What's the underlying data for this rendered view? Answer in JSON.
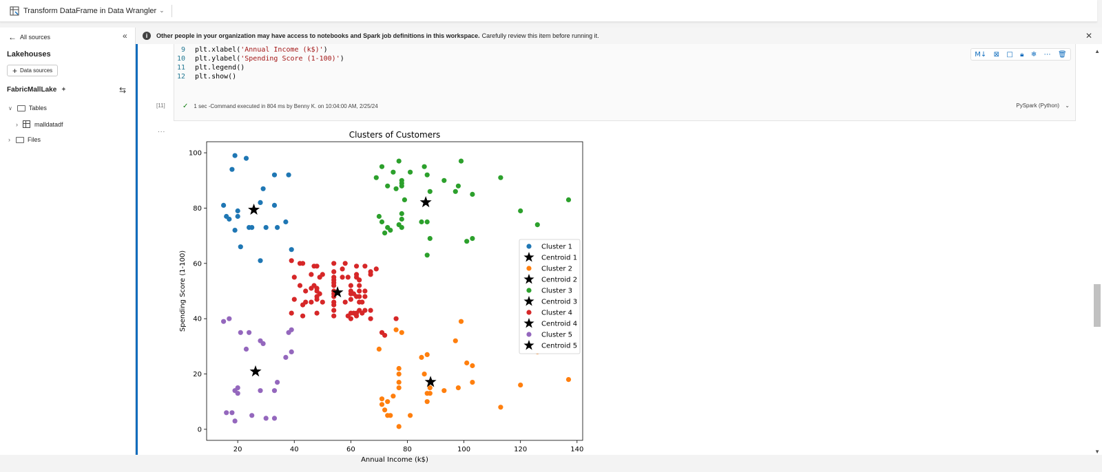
{
  "topbar": {
    "title": "Transform DataFrame in Data Wrangler"
  },
  "sidebar": {
    "back_label": "All sources",
    "section_title": "Lakehouses",
    "add_button_label": "Data sources",
    "lakehouse_name": "FabricMallLake",
    "tree": {
      "tables_label": "Tables",
      "table_item": "malldatadf",
      "files_label": "Files"
    }
  },
  "banner": {
    "bold_text": "Other people in your organization may have access to notebooks and Spark job definitions in this workspace.",
    "text": "Carefully review this item before running it."
  },
  "cell": {
    "lines": [
      {
        "num": "9",
        "pre": "plt.xlabel(",
        "str": "'Annual Income (k$)'",
        "post": ")"
      },
      {
        "num": "10",
        "pre": "plt.ylabel(",
        "str": "'Spending Score (1-100)'",
        "post": ")"
      },
      {
        "num": "11",
        "pre": "plt.legend()",
        "str": "",
        "post": ""
      },
      {
        "num": "12",
        "pre": "plt.show()",
        "str": "",
        "post": ""
      }
    ],
    "exec_count": "[11]",
    "exec_status": "1 sec -Command executed in 804 ms by Benny K. on 10:04:00 AM, 2/25/24",
    "language": "PySpark (Python)",
    "output_ellipsis": "..."
  },
  "colors": {
    "c1": "#1f77b4",
    "c2": "#ff7f0e",
    "c3": "#2ca02c",
    "c4": "#d62728",
    "c5": "#9467bd",
    "accent": "#0f6cbd"
  },
  "chart_data": {
    "type": "scatter",
    "title": "Clusters of Customers",
    "xlabel": "Annual Income (k$)",
    "ylabel": "Spending Score (1-100)",
    "xlim": [
      9,
      142
    ],
    "ylim": [
      -4,
      104
    ],
    "xticks": [
      20,
      40,
      60,
      80,
      100,
      120,
      140
    ],
    "yticks": [
      0,
      20,
      40,
      60,
      80,
      100
    ],
    "legend_position": "right",
    "series": [
      {
        "name": "Cluster 1",
        "color": "#1f77b4",
        "points": [
          [
            15,
            81
          ],
          [
            16,
            77
          ],
          [
            17,
            76
          ],
          [
            18,
            94
          ],
          [
            19,
            99
          ],
          [
            19,
            72
          ],
          [
            20,
            79
          ],
          [
            20,
            77
          ],
          [
            21,
            66
          ],
          [
            23,
            98
          ],
          [
            24,
            73
          ],
          [
            25,
            73
          ],
          [
            28,
            82
          ],
          [
            28,
            61
          ],
          [
            29,
            87
          ],
          [
            30,
            73
          ],
          [
            33,
            81
          ],
          [
            33,
            92
          ],
          [
            34,
            73
          ],
          [
            37,
            75
          ],
          [
            38,
            92
          ],
          [
            39,
            65
          ]
        ]
      },
      {
        "name": "Centroid 1",
        "marker": "star",
        "points": [
          [
            25.7,
            79.4
          ]
        ]
      },
      {
        "name": "Cluster 2",
        "color": "#ff7f0e",
        "points": [
          [
            70,
            29
          ],
          [
            71,
            11
          ],
          [
            71,
            9
          ],
          [
            72,
            7
          ],
          [
            73,
            5
          ],
          [
            73,
            10
          ],
          [
            74,
            5
          ],
          [
            75,
            12
          ],
          [
            76,
            36
          ],
          [
            77,
            1
          ],
          [
            77,
            22
          ],
          [
            77,
            20
          ],
          [
            77,
            17
          ],
          [
            77,
            15
          ],
          [
            78,
            35
          ],
          [
            81,
            5
          ],
          [
            85,
            26
          ],
          [
            86,
            20
          ],
          [
            87,
            27
          ],
          [
            87,
            13
          ],
          [
            87,
            10
          ],
          [
            88,
            13
          ],
          [
            88,
            15
          ],
          [
            93,
            14
          ],
          [
            97,
            32
          ],
          [
            98,
            15
          ],
          [
            99,
            39
          ],
          [
            101,
            24
          ],
          [
            103,
            17
          ],
          [
            103,
            23
          ],
          [
            113,
            8
          ],
          [
            120,
            16
          ],
          [
            126,
            28
          ],
          [
            137,
            18
          ]
        ]
      },
      {
        "name": "Centroid 2",
        "marker": "star",
        "points": [
          [
            88.2,
            17.1
          ]
        ]
      },
      {
        "name": "Cluster 3",
        "color": "#2ca02c",
        "points": [
          [
            69,
            91
          ],
          [
            70,
            77
          ],
          [
            71,
            95
          ],
          [
            71,
            75
          ],
          [
            72,
            71
          ],
          [
            73,
            88
          ],
          [
            73,
            73
          ],
          [
            74,
            72
          ],
          [
            75,
            93
          ],
          [
            76,
            87
          ],
          [
            77,
            97
          ],
          [
            77,
            74
          ],
          [
            78,
            90
          ],
          [
            78,
            88
          ],
          [
            78,
            76
          ],
          [
            78,
            89
          ],
          [
            78,
            78
          ],
          [
            78,
            73
          ],
          [
            79,
            83
          ],
          [
            81,
            93
          ],
          [
            85,
            75
          ],
          [
            86,
            95
          ],
          [
            87,
            75
          ],
          [
            87,
            63
          ],
          [
            87,
            92
          ],
          [
            88,
            86
          ],
          [
            88,
            69
          ],
          [
            93,
            90
          ],
          [
            97,
            86
          ],
          [
            98,
            88
          ],
          [
            99,
            97
          ],
          [
            101,
            68
          ],
          [
            103,
            85
          ],
          [
            103,
            69
          ],
          [
            113,
            91
          ],
          [
            120,
            79
          ],
          [
            126,
            74
          ],
          [
            137,
            83
          ]
        ]
      },
      {
        "name": "Centroid 3",
        "marker": "star",
        "points": [
          [
            86.5,
            82.1
          ]
        ]
      },
      {
        "name": "Cluster 4",
        "color": "#d62728",
        "points": [
          [
            39,
            61
          ],
          [
            39,
            42
          ],
          [
            40,
            55
          ],
          [
            40,
            47
          ],
          [
            42,
            60
          ],
          [
            42,
            52
          ],
          [
            43,
            60
          ],
          [
            43,
            45
          ],
          [
            43,
            41
          ],
          [
            44,
            50
          ],
          [
            44,
            46
          ],
          [
            46,
            51
          ],
          [
            46,
            46
          ],
          [
            46,
            56
          ],
          [
            47,
            52
          ],
          [
            47,
            59
          ],
          [
            48,
            51
          ],
          [
            48,
            59
          ],
          [
            48,
            50
          ],
          [
            48,
            48
          ],
          [
            48,
            47
          ],
          [
            48,
            42
          ],
          [
            49,
            49
          ],
          [
            49,
            55
          ],
          [
            50,
            56
          ],
          [
            50,
            46
          ],
          [
            54,
            52
          ],
          [
            54,
            43
          ],
          [
            54,
            54
          ],
          [
            54,
            57
          ],
          [
            54,
            48
          ],
          [
            54,
            60
          ],
          [
            54,
            45
          ],
          [
            54,
            41
          ],
          [
            54,
            50
          ],
          [
            54,
            46
          ],
          [
            54,
            49
          ],
          [
            54,
            55
          ],
          [
            54,
            53
          ],
          [
            57,
            58
          ],
          [
            57,
            55
          ],
          [
            58,
            60
          ],
          [
            58,
            46
          ],
          [
            59,
            55
          ],
          [
            59,
            41
          ],
          [
            60,
            49
          ],
          [
            60,
            40
          ],
          [
            60,
            42
          ],
          [
            60,
            52
          ],
          [
            60,
            47
          ],
          [
            60,
            50
          ],
          [
            61,
            42
          ],
          [
            61,
            49
          ],
          [
            62,
            41
          ],
          [
            62,
            48
          ],
          [
            62,
            59
          ],
          [
            62,
            55
          ],
          [
            62,
            56
          ],
          [
            62,
            42
          ],
          [
            63,
            50
          ],
          [
            63,
            46
          ],
          [
            63,
            43
          ],
          [
            63,
            48
          ],
          [
            63,
            52
          ],
          [
            63,
            54
          ],
          [
            64,
            42
          ],
          [
            64,
            46
          ],
          [
            65,
            48
          ],
          [
            65,
            50
          ],
          [
            65,
            43
          ],
          [
            65,
            59
          ],
          [
            67,
            43
          ],
          [
            67,
            57
          ],
          [
            67,
            56
          ],
          [
            67,
            40
          ],
          [
            69,
            58
          ],
          [
            71,
            35
          ],
          [
            72,
            34
          ],
          [
            76,
            40
          ]
        ]
      },
      {
        "name": "Centroid 4",
        "marker": "star",
        "points": [
          [
            55.3,
            49.5
          ]
        ]
      },
      {
        "name": "Cluster 5",
        "color": "#9467bd",
        "points": [
          [
            15,
            39
          ],
          [
            16,
            6
          ],
          [
            17,
            40
          ],
          [
            18,
            6
          ],
          [
            19,
            3
          ],
          [
            19,
            14
          ],
          [
            20,
            15
          ],
          [
            20,
            13
          ],
          [
            21,
            35
          ],
          [
            23,
            29
          ],
          [
            24,
            35
          ],
          [
            25,
            5
          ],
          [
            28,
            14
          ],
          [
            28,
            32
          ],
          [
            29,
            31
          ],
          [
            30,
            4
          ],
          [
            33,
            4
          ],
          [
            33,
            14
          ],
          [
            34,
            17
          ],
          [
            37,
            26
          ],
          [
            38,
            35
          ],
          [
            39,
            36
          ],
          [
            39,
            28
          ]
        ]
      },
      {
        "name": "Centroid 5",
        "marker": "star",
        "points": [
          [
            26.3,
            20.9
          ]
        ]
      }
    ]
  }
}
